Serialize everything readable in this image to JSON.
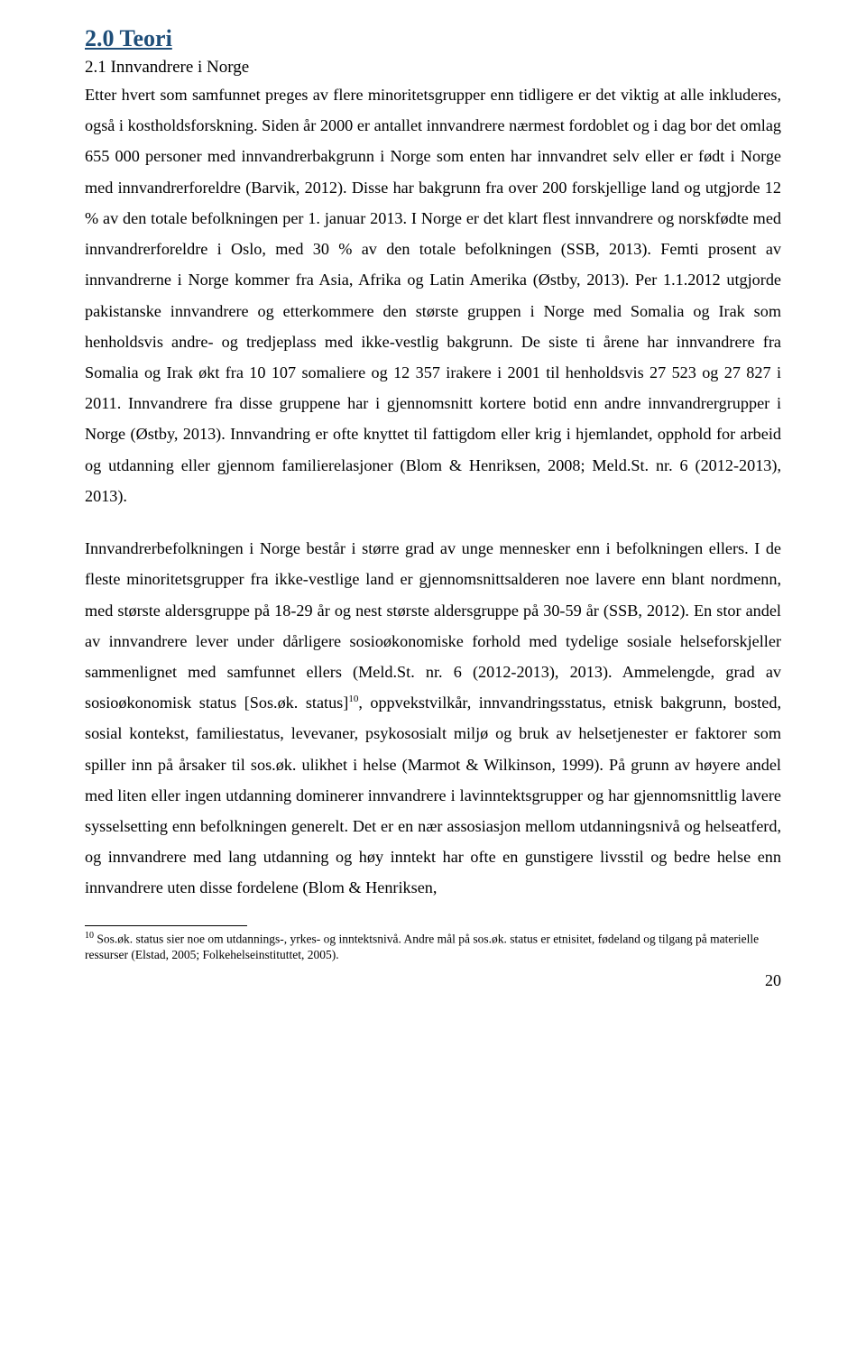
{
  "heading1": "2.0 Teori",
  "heading2": "2.1 Innvandrere i Norge",
  "para1": "Etter hvert som samfunnet preges av flere minoritetsgrupper enn tidligere er det viktig at alle inkluderes, også i kostholdsforskning. Siden år 2000 er antallet innvandrere nærmest fordoblet og i dag bor det omlag 655 000 personer med innvandrerbakgrunn i Norge som enten har innvandret selv eller er født i Norge med innvandrerforeldre (Barvik, 2012). Disse har bakgrunn fra over 200 forskjellige land og utgjorde 12 % av den totale befolkningen per 1. januar 2013. I Norge er det klart flest innvandrere og norskfødte med innvandrerforeldre i Oslo, med 30 % av den totale befolkningen (SSB, 2013). Femti prosent av innvandrerne i Norge kommer fra Asia, Afrika og Latin Amerika (Østby, 2013). Per 1.1.2012 utgjorde pakistanske innvandrere og etterkommere den største gruppen i Norge med Somalia og Irak som henholdsvis andre- og tredjeplass med ikke-vestlig bakgrunn. De siste ti årene har innvandrere fra Somalia og Irak økt fra 10 107 somaliere og 12 357 irakere i 2001 til henholdsvis 27 523 og 27 827 i 2011. Innvandrere fra disse gruppene har i gjennomsnitt kortere botid enn andre innvandrergrupper i Norge (Østby, 2013). Innvandring er ofte knyttet til fattigdom eller krig i hjemlandet, opphold for arbeid og utdanning eller gjennom familierelasjoner (Blom & Henriksen, 2008; Meld.St. nr. 6 (2012-2013), 2013).",
  "para2_a": "Innvandrerbefolkningen i Norge består i større grad av unge mennesker enn i befolkningen ellers. I de fleste minoritetsgrupper fra ikke-vestlige land er gjennomsnittsalderen noe lavere enn blant nordmenn, med største aldersgruppe på 18-29 år og nest største aldersgruppe på 30-59 år (SSB, 2012). En stor andel av innvandrere lever under dårligere sosioøkonomiske forhold med tydelige sosiale helseforskjeller sammenlignet med samfunnet ellers (Meld.St. nr. 6 (2012-2013), 2013). Ammelengde, grad av sosioøkonomisk status [Sos.øk. status]",
  "para2_sup": "10",
  "para2_b": ", oppvekstvilkår, innvandringsstatus, etnisk bakgrunn, bosted, sosial kontekst, familiestatus, levevaner, psykososialt miljø og bruk av helsetjenester er faktorer som spiller inn på årsaker til sos.øk. ulikhet i helse (Marmot & Wilkinson, 1999). På grunn av høyere andel med liten eller ingen utdanning dominerer innvandrere i lavinntektsgrupper og har gjennomsnittlig lavere sysselsetting enn befolkningen generelt. Det er en nær assosiasjon mellom utdanningsnivå og helseatferd, og innvandrere med lang utdanning og høy inntekt har ofte en gunstigere livsstil og bedre helse enn innvandrere uten disse fordelene (Blom & Henriksen,",
  "footnote_sup": "10",
  "footnote_text": " Sos.øk. status sier noe om utdannings-, yrkes- og inntektsnivå. Andre mål på sos.øk. status er etnisitet, fødeland og tilgang på materielle ressurser (Elstad, 2005; Folkehelseinstituttet, 2005).",
  "page_number": "20"
}
